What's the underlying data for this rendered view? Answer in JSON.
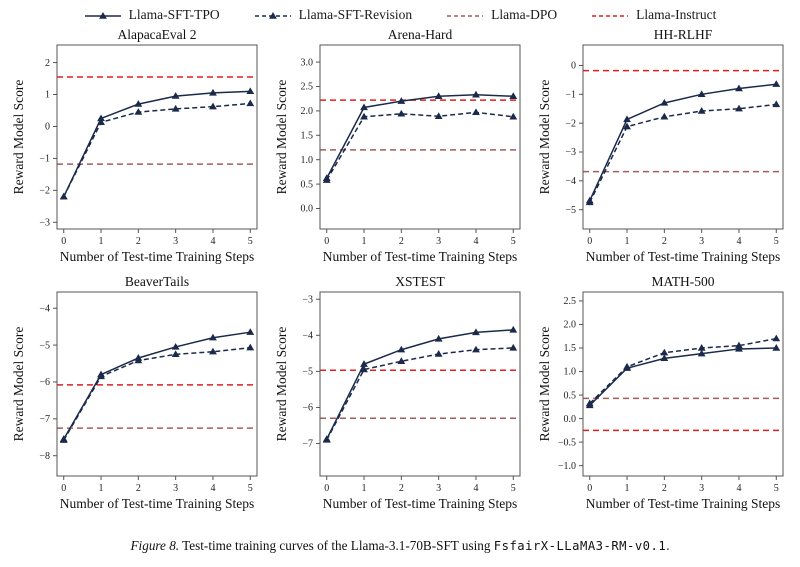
{
  "page": {
    "background": "#ffffff"
  },
  "colors": {
    "navy": "#1b2a4a",
    "dpo": "#a25c5c",
    "instruct": "#df1f1f",
    "spine": "#555555",
    "tick_text": "#222222"
  },
  "legend": {
    "items": [
      {
        "label": "Llama-SFT-TPO",
        "line": "solid",
        "marker": true,
        "color": "navy"
      },
      {
        "label": "Llama-SFT-Revision",
        "line": "dashed",
        "marker": true,
        "color": "navy"
      },
      {
        "label": "Llama-DPO",
        "line": "dashed",
        "marker": false,
        "color": "dpo"
      },
      {
        "label": "Llama-Instruct",
        "line": "dashed",
        "marker": false,
        "color": "instruct"
      }
    ]
  },
  "chart_data": [
    {
      "type": "line",
      "title": "AlapacaEval 2",
      "xlabel": "Number of Test-time Training Steps",
      "ylabel": "Reward Model Score",
      "x": [
        0,
        1,
        2,
        3,
        4,
        5
      ],
      "xlim": [
        -0.18,
        5.18
      ],
      "ylim": [
        -3.21,
        2.55
      ],
      "yticks": [
        -3,
        -2,
        -1,
        0,
        1,
        2
      ],
      "ytick_decimals": 0,
      "series": [
        {
          "name": "Llama-SFT-TPO",
          "style": "solid",
          "color": "navy",
          "values": [
            -2.2,
            0.25,
            0.7,
            0.95,
            1.05,
            1.1
          ]
        },
        {
          "name": "Llama-SFT-Revision",
          "style": "dashed",
          "color": "navy",
          "values": [
            -2.2,
            0.13,
            0.45,
            0.55,
            0.62,
            0.72
          ]
        }
      ],
      "hlines": [
        {
          "name": "Llama-Instruct",
          "value": 1.55,
          "color": "instruct"
        },
        {
          "name": "Llama-DPO",
          "value": -1.18,
          "color": "dpo"
        }
      ]
    },
    {
      "type": "line",
      "title": "Arena-Hard",
      "xlabel": "Number of Test-time Training Steps",
      "ylabel": "Reward Model Score",
      "x": [
        0,
        1,
        2,
        3,
        4,
        5
      ],
      "xlim": [
        -0.18,
        5.18
      ],
      "ylim": [
        -0.42,
        3.35
      ],
      "yticks": [
        0.0,
        0.5,
        1.0,
        1.5,
        2.0,
        2.5,
        3.0
      ],
      "ytick_decimals": 1,
      "series": [
        {
          "name": "Llama-SFT-TPO",
          "style": "solid",
          "color": "navy",
          "values": [
            0.62,
            2.07,
            2.2,
            2.3,
            2.33,
            2.3
          ]
        },
        {
          "name": "Llama-SFT-Revision",
          "style": "dashed",
          "color": "navy",
          "values": [
            0.58,
            1.88,
            1.94,
            1.89,
            1.97,
            1.88
          ]
        }
      ],
      "hlines": [
        {
          "name": "Llama-Instruct",
          "value": 2.22,
          "color": "instruct"
        },
        {
          "name": "Llama-DPO",
          "value": 1.2,
          "color": "dpo"
        }
      ]
    },
    {
      "type": "line",
      "title": "HH-RLHF",
      "xlabel": "Number of Test-time Training Steps",
      "ylabel": "Reward Model Score",
      "x": [
        0,
        1,
        2,
        3,
        4,
        5
      ],
      "xlim": [
        -0.18,
        5.18
      ],
      "ylim": [
        -5.67,
        0.71
      ],
      "yticks": [
        0,
        -1,
        -2,
        -3,
        -4,
        -5
      ],
      "ytick_decimals": 0,
      "series": [
        {
          "name": "Llama-SFT-TPO",
          "style": "solid",
          "color": "navy",
          "values": [
            -4.69,
            -1.87,
            -1.3,
            -1.0,
            -0.8,
            -0.65
          ]
        },
        {
          "name": "Llama-SFT-Revision",
          "style": "dashed",
          "color": "navy",
          "values": [
            -4.75,
            -2.12,
            -1.78,
            -1.58,
            -1.5,
            -1.35
          ]
        }
      ],
      "hlines": [
        {
          "name": "Llama-Instruct",
          "value": -0.18,
          "color": "instruct"
        },
        {
          "name": "Llama-DPO",
          "value": -3.68,
          "color": "dpo"
        }
      ]
    },
    {
      "type": "line",
      "title": "BeaverTails",
      "xlabel": "Number of Test-time Training Steps",
      "ylabel": "Reward Model Score",
      "x": [
        0,
        1,
        2,
        3,
        4,
        5
      ],
      "xlim": [
        -0.18,
        5.18
      ],
      "ylim": [
        -8.55,
        -3.56
      ],
      "yticks": [
        -4,
        -5,
        -6,
        -7,
        -8
      ],
      "ytick_decimals": 0,
      "series": [
        {
          "name": "Llama-SFT-TPO",
          "style": "solid",
          "color": "navy",
          "values": [
            -7.55,
            -5.8,
            -5.35,
            -5.05,
            -4.8,
            -4.65
          ]
        },
        {
          "name": "Llama-SFT-Revision",
          "style": "dashed",
          "color": "navy",
          "values": [
            -7.58,
            -5.85,
            -5.42,
            -5.25,
            -5.18,
            -5.07
          ]
        }
      ],
      "hlines": [
        {
          "name": "Llama-Instruct",
          "value": -6.08,
          "color": "instruct"
        },
        {
          "name": "Llama-DPO",
          "value": -7.25,
          "color": "dpo"
        }
      ]
    },
    {
      "type": "line",
      "title": "XSTEST",
      "xlabel": "Number of Test-time Training Steps",
      "ylabel": "Reward Model Score",
      "x": [
        0,
        1,
        2,
        3,
        4,
        5
      ],
      "xlim": [
        -0.18,
        5.18
      ],
      "ylim": [
        -7.9,
        -2.8
      ],
      "yticks": [
        -3,
        -4,
        -5,
        -6,
        -7
      ],
      "ytick_decimals": 0,
      "series": [
        {
          "name": "Llama-SFT-TPO",
          "style": "solid",
          "color": "navy",
          "values": [
            -6.88,
            -4.8,
            -4.4,
            -4.1,
            -3.92,
            -3.85
          ]
        },
        {
          "name": "Llama-SFT-Revision",
          "style": "dashed",
          "color": "navy",
          "values": [
            -6.9,
            -4.95,
            -4.72,
            -4.52,
            -4.4,
            -4.35
          ]
        }
      ],
      "hlines": [
        {
          "name": "Llama-Instruct",
          "value": -4.97,
          "color": "instruct"
        },
        {
          "name": "Llama-DPO",
          "value": -6.3,
          "color": "dpo"
        }
      ]
    },
    {
      "type": "line",
      "title": "MATH-500",
      "xlabel": "Number of Test-time Training Steps",
      "ylabel": "Reward Model Score",
      "x": [
        0,
        1,
        2,
        3,
        4,
        5
      ],
      "xlim": [
        -0.18,
        5.18
      ],
      "ylim": [
        -1.22,
        2.69
      ],
      "yticks": [
        2.5,
        2.0,
        1.5,
        1.0,
        0.5,
        0.0,
        -0.5,
        -1.0
      ],
      "ytick_decimals": 1,
      "series": [
        {
          "name": "Llama-SFT-TPO",
          "style": "solid",
          "color": "navy",
          "values": [
            0.28,
            1.07,
            1.28,
            1.38,
            1.48,
            1.5
          ]
        },
        {
          "name": "Llama-SFT-Revision",
          "style": "dashed",
          "color": "navy",
          "values": [
            0.32,
            1.1,
            1.4,
            1.5,
            1.55,
            1.7
          ]
        }
      ],
      "hlines": [
        {
          "name": "Llama-DPO",
          "value": 0.43,
          "color": "dpo"
        },
        {
          "name": "Llama-Instruct",
          "value": -0.25,
          "color": "instruct"
        }
      ]
    }
  ],
  "caption": {
    "figure_label": "Figure 8.",
    "text": " Test-time training curves of the Llama-3.1-70B-SFT using ",
    "code": "FsfairX-LLaMA3-RM-v0.1",
    "suffix": "."
  }
}
